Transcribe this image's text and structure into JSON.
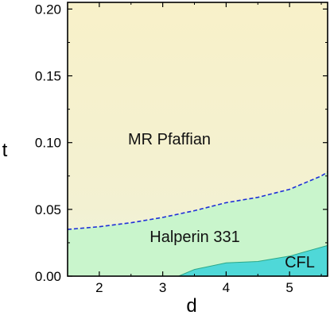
{
  "chart_data": {
    "type": "area",
    "xlabel": "d",
    "ylabel": "t",
    "xlim": [
      1.5,
      5.6
    ],
    "ylim": [
      0.0,
      0.205
    ],
    "xticks": [
      2,
      3,
      4,
      5
    ],
    "yticks": [
      0.0,
      0.05,
      0.1,
      0.15,
      0.2
    ],
    "ytick_labels": [
      "0.00",
      "0.05",
      "0.10",
      "0.15",
      "0.20"
    ],
    "regions": [
      {
        "name": "MR Pfaffian",
        "color": "#f7f2cf"
      },
      {
        "name": "Halperin 331",
        "color": "#c9f5cc"
      },
      {
        "name": "CFL",
        "color": "#4fd8d8"
      }
    ],
    "boundaries": [
      {
        "between": [
          "MR Pfaffian",
          "Halperin 331"
        ],
        "style": "dashed",
        "color": "#1f2fd8",
        "points": [
          [
            1.5,
            0.035
          ],
          [
            2.0,
            0.037
          ],
          [
            2.5,
            0.04
          ],
          [
            3.0,
            0.044
          ],
          [
            3.5,
            0.049
          ],
          [
            4.0,
            0.055
          ],
          [
            4.5,
            0.059
          ],
          [
            5.0,
            0.065
          ],
          [
            5.5,
            0.075
          ],
          [
            5.6,
            0.078
          ]
        ]
      },
      {
        "between": [
          "Halperin 331",
          "CFL"
        ],
        "style": "solid",
        "color": "#2aa889",
        "points": [
          [
            3.25,
            0.0
          ],
          [
            3.5,
            0.005
          ],
          [
            4.0,
            0.01
          ],
          [
            4.5,
            0.011
          ],
          [
            5.0,
            0.015
          ],
          [
            5.6,
            0.023
          ]
        ]
      }
    ]
  }
}
